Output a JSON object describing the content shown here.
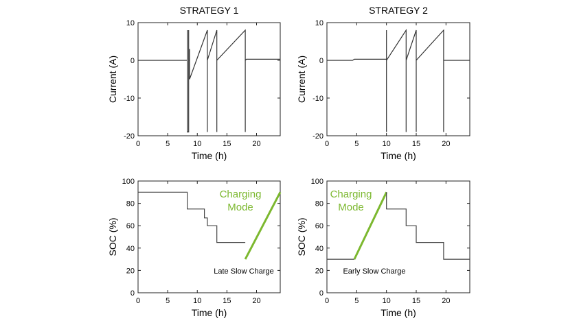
{
  "chart_data": [
    {
      "type": "line",
      "title": "STRATEGY 1",
      "xlabel": "Time (h)",
      "ylabel": "Current (A)",
      "xlim": [
        0,
        24
      ],
      "ylim": [
        -20,
        10
      ],
      "xticks": [
        "0",
        "5",
        "10",
        "15",
        "20"
      ],
      "yticks": [
        "-20",
        "-10",
        "0",
        "10"
      ],
      "series": [
        {
          "color": "#333333",
          "x": [
            0,
            8.3,
            8.3,
            8.3,
            8.55,
            8.55,
            8.55,
            8.7,
            8.7,
            8.7,
            11.7,
            11.7,
            11.7,
            13.3,
            13.3,
            13.3,
            18.1,
            18.1,
            18.1,
            18.3,
            24
          ],
          "y": [
            0,
            0,
            8,
            -19,
            -19,
            8,
            0,
            0,
            3,
            -5,
            8,
            -19,
            0,
            8,
            -19,
            0,
            8,
            -19,
            0,
            0.3,
            0.3
          ]
        }
      ],
      "annotations": []
    },
    {
      "type": "line",
      "title": "STRATEGY 2",
      "xlabel": "Time (h)",
      "ylabel": "Current (A)",
      "xlim": [
        0,
        24
      ],
      "ylim": [
        -20,
        10
      ],
      "xticks": [
        "0",
        "5",
        "10",
        "15",
        "20"
      ],
      "yticks": [
        "-20",
        "-10",
        "0",
        "10"
      ],
      "series": [
        {
          "color": "#333333",
          "x": [
            0,
            4.3,
            4.6,
            10,
            10,
            10,
            10,
            13.3,
            13.3,
            13.3,
            15,
            15,
            15,
            19.6,
            19.6,
            19.6,
            24
          ],
          "y": [
            0,
            0,
            0.3,
            0.3,
            8,
            -19,
            0,
            8,
            -19,
            0,
            8,
            -19,
            0,
            8,
            -19,
            0,
            0
          ],
          "note": "current"
        }
      ],
      "annotations": []
    },
    {
      "type": "line",
      "xlabel": "Time (h)",
      "ylabel": "SOC (%)",
      "xlim": [
        0,
        24
      ],
      "ylim": [
        0,
        100
      ],
      "xticks": [
        "0",
        "5",
        "10",
        "15",
        "20"
      ],
      "yticks": [
        "0",
        "20",
        "40",
        "60",
        "80",
        "100"
      ],
      "series": [
        {
          "color": "#444444",
          "x": [
            0,
            8.3,
            8.3,
            11.2,
            11.2,
            11.7,
            11.7,
            13.3,
            13.3,
            18.1
          ],
          "y": [
            90,
            90,
            75,
            75,
            67,
            67,
            60,
            60,
            45,
            45
          ]
        },
        {
          "color": "#7cb82f",
          "x": [
            18.1,
            24
          ],
          "y": [
            30,
            90
          ]
        }
      ],
      "annotations": [
        "Late Slow Charge",
        "Charging",
        "Mode"
      ]
    },
    {
      "type": "line",
      "xlabel": "Time (h)",
      "ylabel": "SOC (%)",
      "xlim": [
        0,
        24
      ],
      "ylim": [
        0,
        100
      ],
      "xticks": [
        "0",
        "5",
        "10",
        "15",
        "20"
      ],
      "yticks": [
        "0",
        "20",
        "40",
        "60",
        "80",
        "100"
      ],
      "series": [
        {
          "color": "#444444",
          "x": [
            0,
            4.6
          ],
          "y": [
            30,
            30
          ]
        },
        {
          "color": "#7cb82f",
          "x": [
            4.6,
            10
          ],
          "y": [
            30,
            90
          ]
        },
        {
          "color": "#444444",
          "x": [
            10,
            10,
            13.3,
            13.3,
            15,
            15,
            19.6,
            19.6,
            24
          ],
          "y": [
            90,
            75,
            75,
            60,
            60,
            45,
            45,
            30,
            30
          ]
        }
      ],
      "annotations": [
        "Early Slow Charge",
        "Charging",
        "Mode"
      ]
    }
  ]
}
